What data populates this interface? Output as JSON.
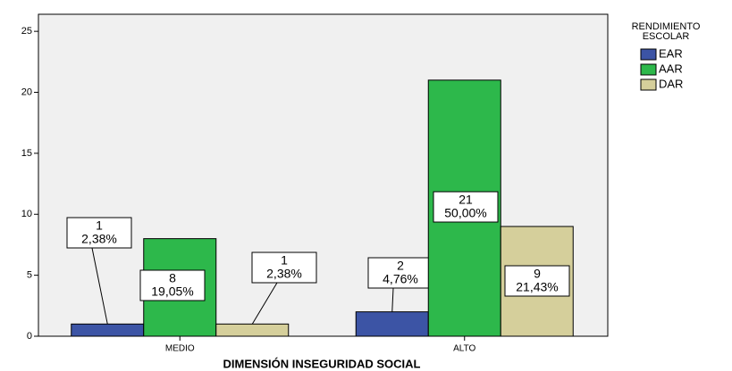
{
  "chart_data": {
    "type": "bar",
    "x_label": "DIMENSIÓN INSEGURIDAD SOCIAL",
    "legend_title": [
      "RENDIMIENTO",
      "ESCOLAR"
    ],
    "legend": "right",
    "categories": [
      "MEDIO",
      "ALTO"
    ],
    "series": [
      {
        "name": "EAR",
        "color": "#3c54a5",
        "values": [
          1,
          2
        ],
        "percent_labels": [
          "2,38%",
          "4,76%"
        ]
      },
      {
        "name": "AAR",
        "color": "#2db84b",
        "values": [
          8,
          21
        ],
        "percent_labels": [
          "19,05%",
          "50,00%"
        ]
      },
      {
        "name": "DAR",
        "color": "#d5cf9b",
        "values": [
          1,
          9
        ],
        "percent_labels": [
          "2,38%",
          "21,43%"
        ]
      }
    ],
    "ylim": [
      0,
      26.4
    ],
    "yticks": [
      0,
      5,
      10,
      15,
      20,
      25
    ]
  }
}
